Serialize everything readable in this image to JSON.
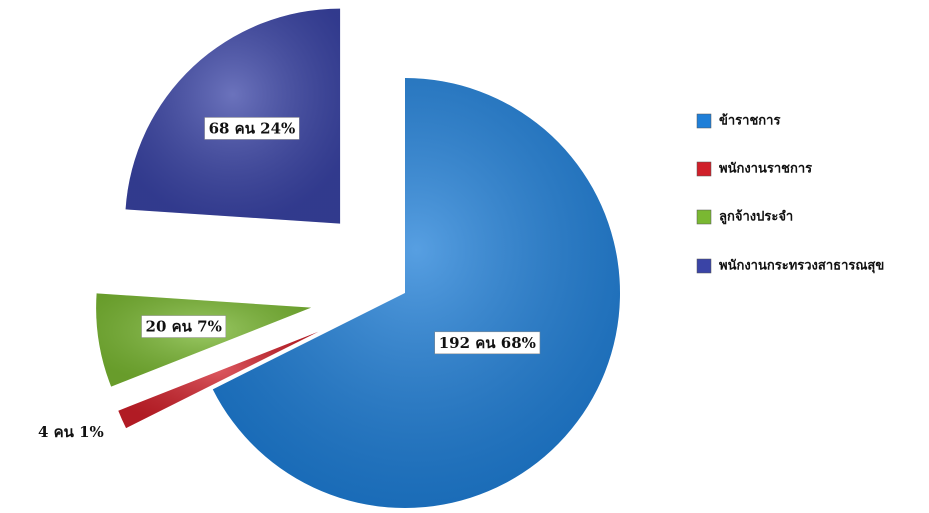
{
  "chart_data": {
    "type": "pie",
    "categories": [
      "ข้าราชการ",
      "พนักงานราชการ",
      "ลูกจ้างประจำ",
      "พนักงานกระทรวงสาธารณสุข"
    ],
    "values": [
      192,
      4,
      20,
      68
    ],
    "value_labels": [
      "192 คน 68%",
      "4 คน 1%",
      "20 คน 7%",
      "68 คน 24%"
    ],
    "colors": [
      "#1f7fd8",
      "#d0202a",
      "#7ab832",
      "#3a44a6"
    ],
    "legend": "right"
  }
}
